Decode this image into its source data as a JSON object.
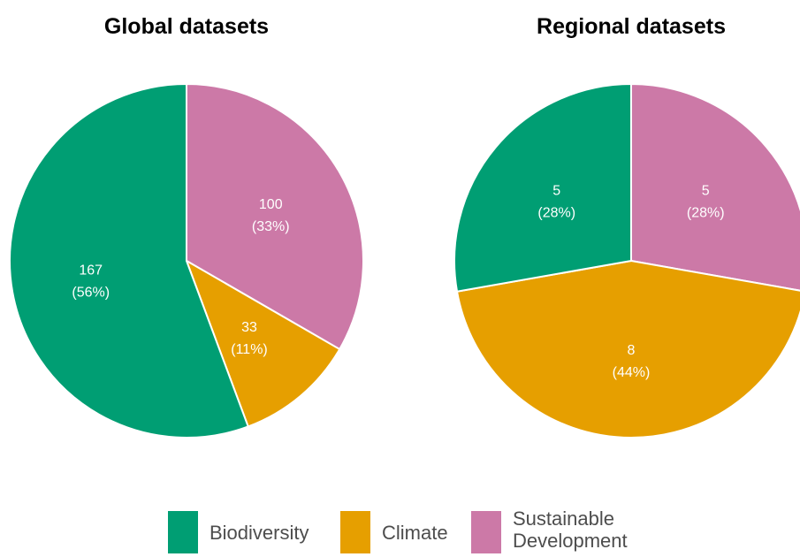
{
  "colors": {
    "Biodiversity": "#009e73",
    "Climate": "#e69f00",
    "Sustainable Development": "#cc79a7"
  },
  "legend": [
    {
      "key": "Biodiversity",
      "label_lines": [
        "Biodiversity"
      ]
    },
    {
      "key": "Climate",
      "label_lines": [
        "Climate"
      ]
    },
    {
      "key": "Sustainable Development",
      "label_lines": [
        "Sustainable",
        "Development"
      ]
    }
  ],
  "chart_data": [
    {
      "type": "pie",
      "title": "Global datasets",
      "slices": [
        {
          "name": "Sustainable Development",
          "value": 100,
          "label": "100",
          "percent": "(33%)"
        },
        {
          "name": "Climate",
          "value": 33,
          "label": "33",
          "percent": "(11%)"
        },
        {
          "name": "Biodiversity",
          "value": 167,
          "label": "167",
          "percent": "(56%)"
        }
      ],
      "legend_position": "bottom"
    },
    {
      "type": "pie",
      "title": "Regional datasets",
      "slices": [
        {
          "name": "Sustainable Development",
          "value": 5,
          "label": "5",
          "percent": "(28%)"
        },
        {
          "name": "Climate",
          "value": 8,
          "label": "8",
          "percent": "(44%)"
        },
        {
          "name": "Biodiversity",
          "value": 5,
          "label": "5",
          "percent": "(28%)"
        }
      ],
      "legend_position": "bottom"
    }
  ]
}
